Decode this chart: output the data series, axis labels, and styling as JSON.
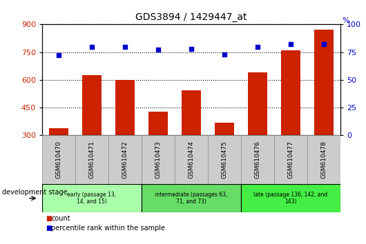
{
  "title": "GDS3894 / 1429447_at",
  "samples": [
    "GSM610470",
    "GSM610471",
    "GSM610472",
    "GSM610473",
    "GSM610474",
    "GSM610475",
    "GSM610476",
    "GSM610477",
    "GSM610478"
  ],
  "counts": [
    340,
    625,
    600,
    430,
    545,
    370,
    640,
    760,
    870
  ],
  "percentiles": [
    72,
    80,
    80,
    77,
    78,
    73,
    80,
    82,
    82
  ],
  "ylim_left": [
    300,
    900
  ],
  "ylim_right": [
    0,
    100
  ],
  "yticks_left": [
    300,
    450,
    600,
    750,
    900
  ],
  "yticks_right": [
    0,
    25,
    50,
    75,
    100
  ],
  "bar_color": "#cc2200",
  "dot_color": "#0000cc",
  "groups": [
    {
      "label": "early (passage 13,\n14, and 15)",
      "start": 0,
      "end": 2,
      "color": "#aaffaa"
    },
    {
      "label": "intermediate (passages 63,\n71, and 73)",
      "start": 3,
      "end": 5,
      "color": "#66dd66"
    },
    {
      "label": "late (passage 136, 142, and\n143)",
      "start": 6,
      "end": 8,
      "color": "#44ee44"
    }
  ],
  "xlabel_devstage": "development stage",
  "legend_count": "count",
  "legend_pct": "percentile rank within the sample",
  "tick_label_color_left": "#cc2200",
  "tick_label_color_right": "#0000cc",
  "sample_box_color": "#cccccc",
  "sample_box_edge": "#888888"
}
